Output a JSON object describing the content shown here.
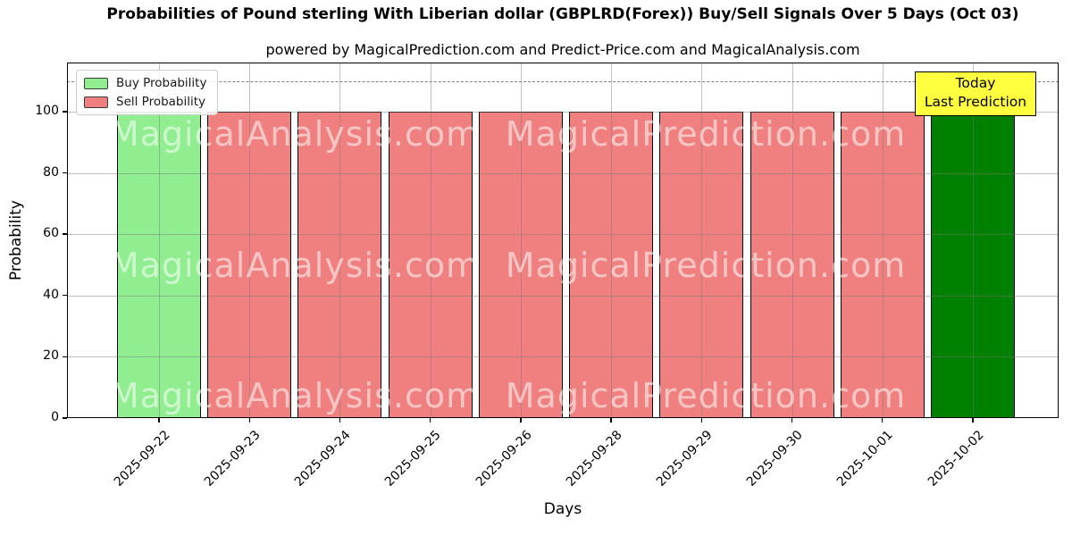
{
  "figure": {
    "title": "Probabilities of Pound sterling With Liberian dollar (GBPLRD(Forex)) Buy/Sell Signals Over 5 Days (Oct 03)",
    "subtitle": "powered by MagicalPrediction.com and Predict-Price.com and MagicalAnalysis.com"
  },
  "legend": {
    "items": [
      {
        "label": "Buy Probability",
        "color": "#90ee90"
      },
      {
        "label": "Sell Probability",
        "color": "#f08080"
      }
    ]
  },
  "annotation": {
    "line1": "Today",
    "line2": "Last Prediction",
    "bg_color": "#ffff40",
    "border_color": "#000000"
  },
  "watermarks": {
    "left_text": "MagicalAnalysis.com",
    "right_text": "MagicalPrediction.com",
    "color": "#ffffff",
    "opacity": 0.55,
    "rows": 3
  },
  "colors": {
    "buy": "#90ee90",
    "sell": "#f08080",
    "today_buy": "#008000",
    "bar_edge": "#000000",
    "grid": "#b0b0b0",
    "dashed_line": "#7f7f7f"
  },
  "chart_data": {
    "type": "bar",
    "title": "Probabilities of Pound sterling With Liberian dollar (GBPLRD(Forex)) Buy/Sell Signals Over 5 Days (Oct 03)",
    "subtitle": "powered by MagicalPrediction.com and Predict-Price.com and MagicalAnalysis.com",
    "xlabel": "Days",
    "ylabel": "Probability",
    "categories": [
      "2025-09-22",
      "2025-09-23",
      "2025-09-24",
      "2025-09-25",
      "2025-09-26",
      "2025-09-28",
      "2025-09-29",
      "2025-09-30",
      "2025-10-01",
      "2025-10-02"
    ],
    "series": [
      {
        "name": "Buy Probability",
        "color": "#90ee90",
        "values": [
          100,
          0,
          0,
          0,
          0,
          0,
          0,
          0,
          0,
          0
        ]
      },
      {
        "name": "Sell Probability",
        "color": "#f08080",
        "values": [
          0,
          100,
          100,
          100,
          100,
          100,
          100,
          100,
          100,
          0
        ]
      },
      {
        "name": "Buy Probability (Today / Last Prediction)",
        "color": "#008000",
        "values": [
          0,
          0,
          0,
          0,
          0,
          0,
          0,
          0,
          0,
          100
        ]
      }
    ],
    "ylim": [
      0,
      116
    ],
    "yticks": [
      0,
      20,
      40,
      60,
      80,
      100
    ],
    "reference_line": {
      "y": 110,
      "style": "dashed"
    },
    "grid": true,
    "legend_position": "upper left",
    "annotation_target": "2025-10-02"
  }
}
